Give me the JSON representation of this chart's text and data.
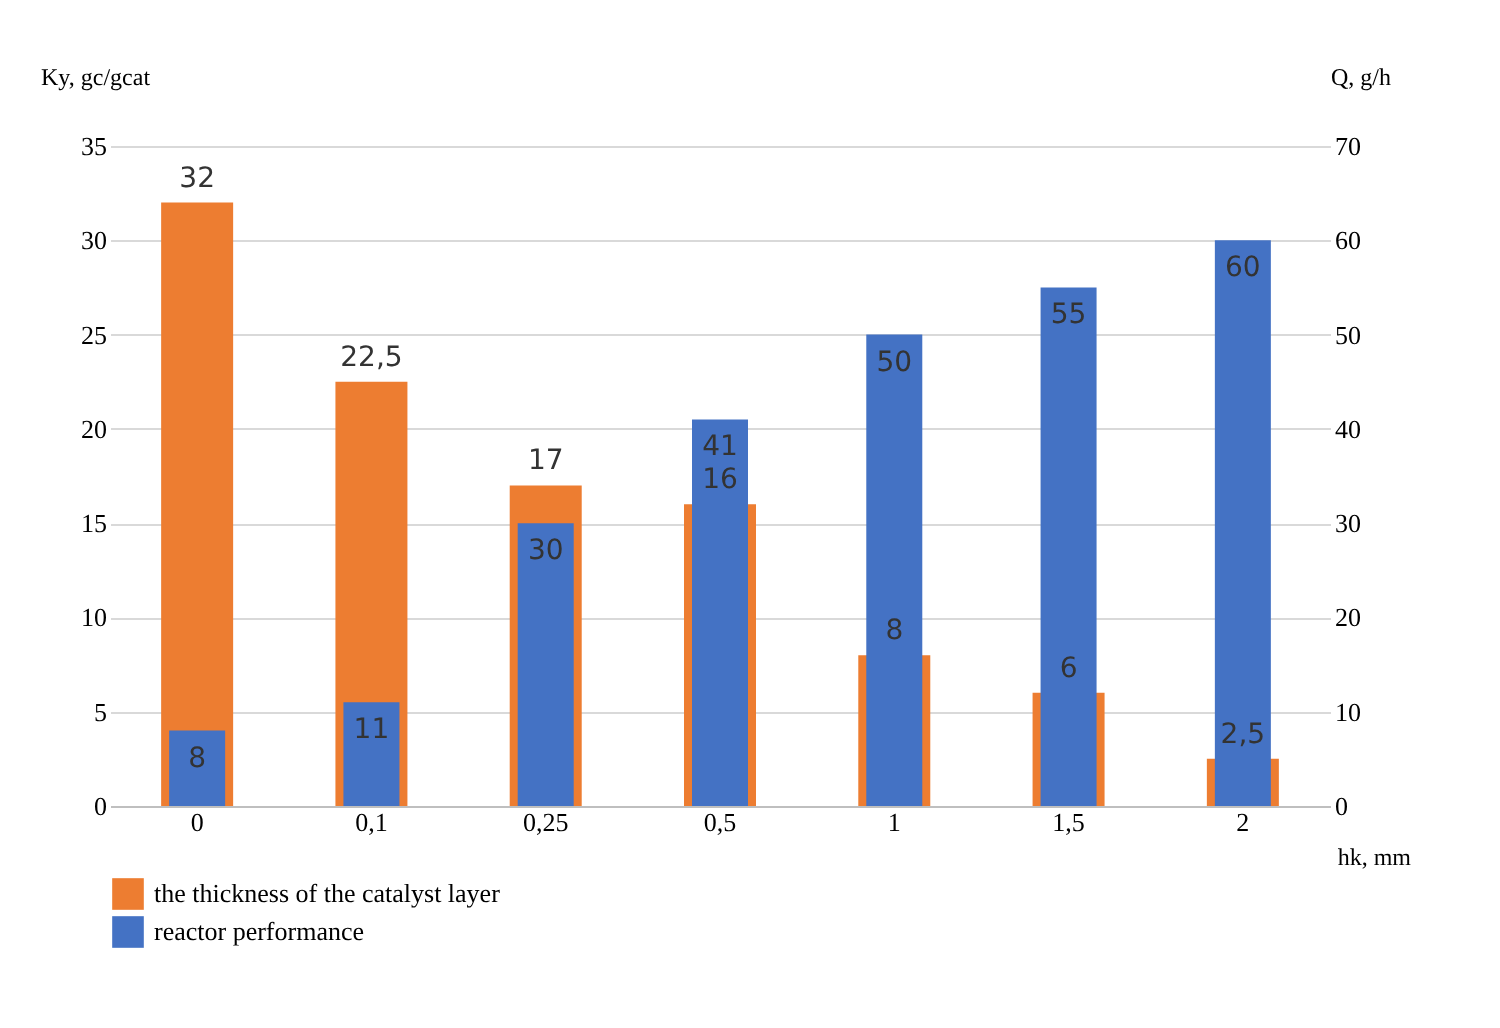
{
  "chart_data": {
    "type": "bar",
    "categories": [
      "0",
      "0,1",
      "0,25",
      "0,5",
      "1",
      "1,5",
      "2"
    ],
    "xlabel": "hk, mm",
    "ylabel": "Ky, gc/gcat",
    "y2label": "Q, g/h",
    "series": [
      {
        "name": "the thickness of the catalyst layer",
        "color": "#ed7d31",
        "axis": "y",
        "values": [
          32,
          22.5,
          17,
          16,
          8,
          6,
          2.5
        ],
        "value_labels": [
          "32",
          "22,5",
          "17",
          "16",
          "8",
          "6",
          "2,5"
        ]
      },
      {
        "name": "reactor performance",
        "color": "#4472c4",
        "axis": "y2",
        "values": [
          8,
          11,
          30,
          41,
          50,
          55,
          60
        ],
        "value_labels": [
          "8",
          "11",
          "30",
          "41",
          "50",
          "55",
          "60"
        ]
      }
    ],
    "ylim": [
      0,
      35
    ],
    "yticks": [
      0,
      5,
      10,
      15,
      20,
      25,
      30,
      35
    ],
    "y2lim": [
      0,
      70
    ],
    "y2ticks": [
      0,
      10,
      20,
      30,
      40,
      50,
      60,
      70
    ],
    "grid": "y",
    "legend": "bottom"
  }
}
